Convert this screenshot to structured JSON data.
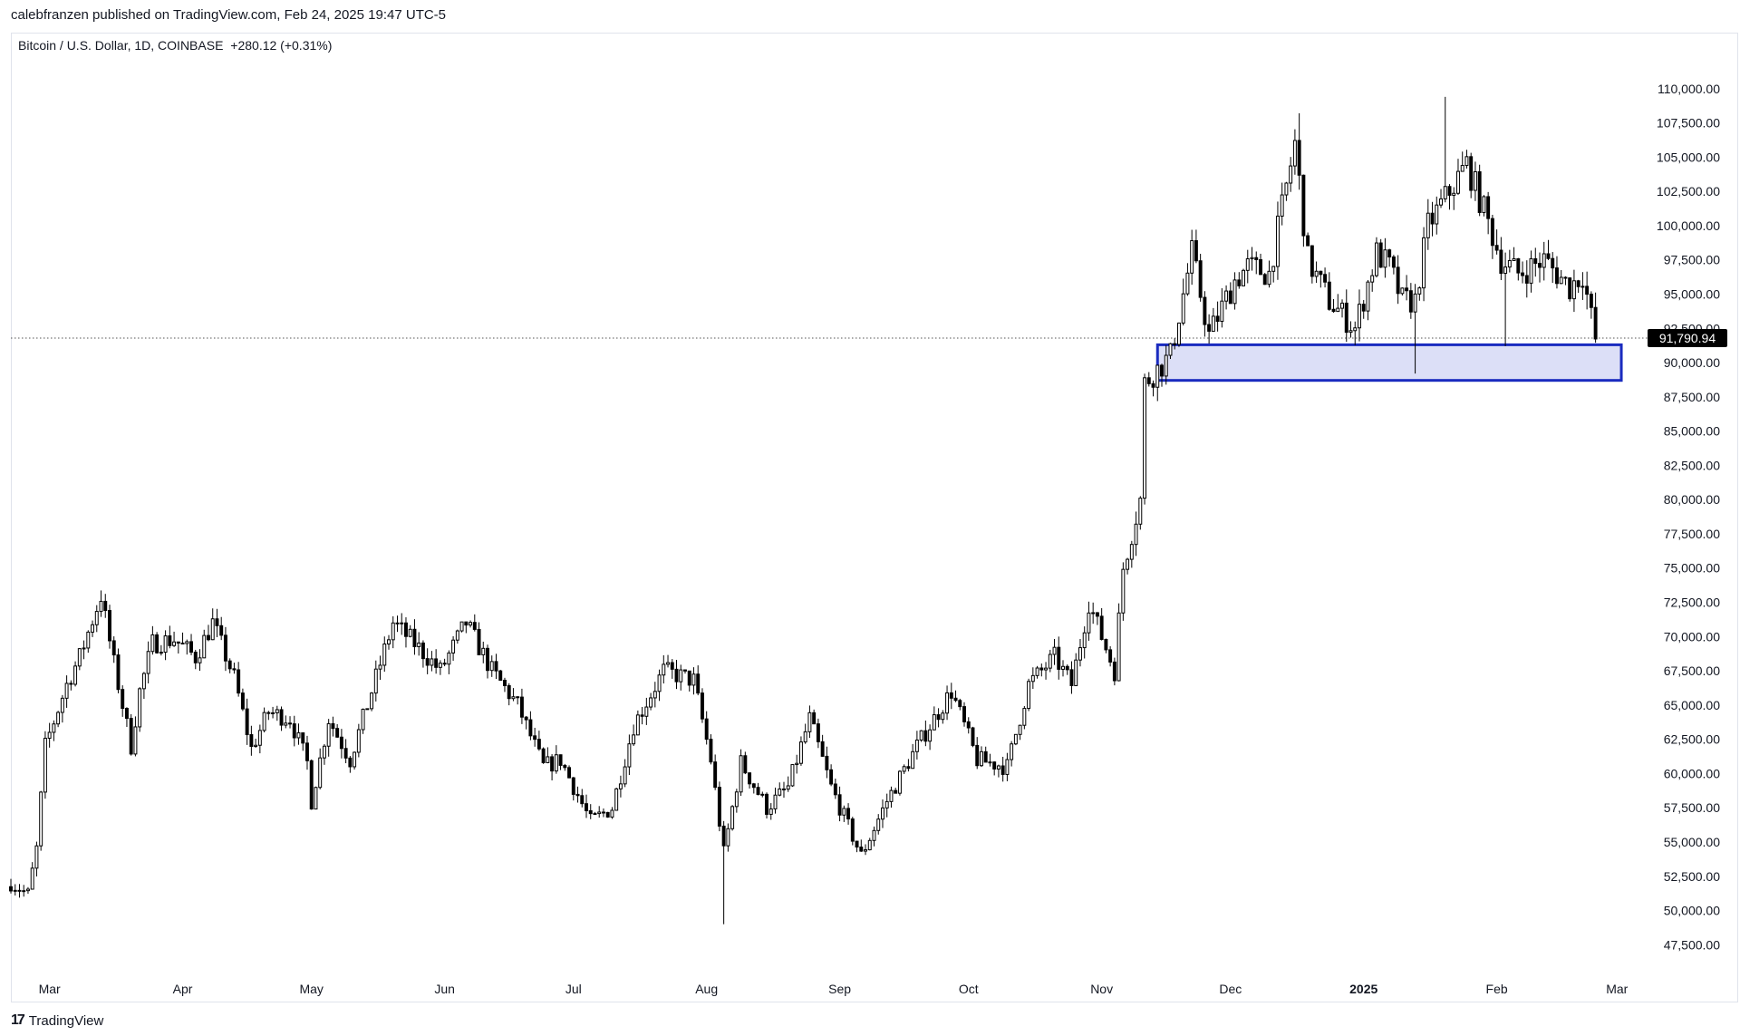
{
  "header": {
    "publish_text": "calebfranzen published on TradingView.com, Feb 24, 2025 19:47 UTC-5"
  },
  "symbol": {
    "name": "Bitcoin / U.S. Dollar, 1D, COINBASE",
    "change": "+280.12 (+0.31%)"
  },
  "footer": {
    "logo_text": "TradingView",
    "logo_icon": "tradingview-logo-icon"
  },
  "colors": {
    "candle": "#000000",
    "zone_fill": "#d6d9f6",
    "zone_stroke": "#1a2bbf",
    "price_line": "#555555",
    "price_label_bg": "#000000",
    "axis_text": "#131722"
  },
  "chart_data": {
    "type": "candlestick",
    "title": "Bitcoin / U.S. Dollar, 1D, COINBASE",
    "y_scale": "linear",
    "ylim": [
      46000,
      112500
    ],
    "y_ticks": [
      "110,000.00",
      "107,500.00",
      "105,000.00",
      "102,500.00",
      "100,000.00",
      "97,500.00",
      "95,000.00",
      "92,500.00",
      "90,000.00",
      "87,500.00",
      "85,000.00",
      "82,500.00",
      "80,000.00",
      "77,500.00",
      "75,000.00",
      "72,500.00",
      "70,000.00",
      "67,500.00",
      "65,000.00",
      "62,500.00",
      "60,000.00",
      "57,500.00",
      "55,000.00",
      "52,500.00",
      "50,000.00",
      "47,500.00"
    ],
    "x_range": [
      "2024-02-21",
      "2025-03-06"
    ],
    "x_ticks": [
      {
        "label": "Mar",
        "date": "2024-03-01",
        "bold": false
      },
      {
        "label": "Apr",
        "date": "2024-04-01",
        "bold": false
      },
      {
        "label": "May",
        "date": "2024-05-01",
        "bold": false
      },
      {
        "label": "Jun",
        "date": "2024-06-01",
        "bold": false
      },
      {
        "label": "Jul",
        "date": "2024-07-01",
        "bold": false
      },
      {
        "label": "Aug",
        "date": "2024-08-01",
        "bold": false
      },
      {
        "label": "Sep",
        "date": "2024-09-01",
        "bold": false
      },
      {
        "label": "Oct",
        "date": "2024-10-01",
        "bold": false
      },
      {
        "label": "Nov",
        "date": "2024-11-01",
        "bold": false
      },
      {
        "label": "Dec",
        "date": "2024-12-01",
        "bold": false
      },
      {
        "label": "2025",
        "date": "2025-01-01",
        "bold": true
      },
      {
        "label": "Feb",
        "date": "2025-02-01",
        "bold": false
      },
      {
        "label": "Mar",
        "date": "2025-03-01",
        "bold": false
      }
    ],
    "current_price": 91790.94,
    "current_price_label": "91,790.94",
    "zone": {
      "x_start": "2024-11-14",
      "x_end": "2025-03-02",
      "y_low": 88700,
      "y_high": 91300
    },
    "close_path": [
      [
        "2024-02-21",
        52000
      ],
      [
        "2024-02-25",
        51200
      ],
      [
        "2024-02-27",
        54500
      ],
      [
        "2024-02-29",
        62000
      ],
      [
        "2024-03-05",
        66500
      ],
      [
        "2024-03-08",
        68500
      ],
      [
        "2024-03-13",
        73000
      ],
      [
        "2024-03-16",
        68000
      ],
      [
        "2024-03-20",
        62000
      ],
      [
        "2024-03-22",
        66000
      ],
      [
        "2024-03-25",
        69500
      ],
      [
        "2024-03-30",
        69800
      ],
      [
        "2024-04-04",
        68500
      ],
      [
        "2024-04-08",
        71000
      ],
      [
        "2024-04-13",
        67000
      ],
      [
        "2024-04-17",
        61800
      ],
      [
        "2024-04-21",
        64500
      ],
      [
        "2024-04-26",
        64000
      ],
      [
        "2024-04-30",
        60800
      ],
      [
        "2024-05-01",
        58000
      ],
      [
        "2024-05-05",
        64000
      ],
      [
        "2024-05-10",
        61000
      ],
      [
        "2024-05-15",
        66000
      ],
      [
        "2024-05-20",
        71000
      ],
      [
        "2024-05-25",
        69500
      ],
      [
        "2024-05-31",
        67500
      ],
      [
        "2024-06-06",
        71000
      ],
      [
        "2024-06-12",
        67500
      ],
      [
        "2024-06-18",
        65000
      ],
      [
        "2024-06-24",
        60500
      ],
      [
        "2024-06-28",
        61000
      ],
      [
        "2024-07-05",
        56500
      ],
      [
        "2024-07-10",
        57500
      ],
      [
        "2024-07-15",
        63500
      ],
      [
        "2024-07-22",
        67500
      ],
      [
        "2024-07-29",
        66800
      ],
      [
        "2024-08-02",
        61000
      ],
      [
        "2024-08-05",
        54200
      ],
      [
        "2024-08-09",
        60800
      ],
      [
        "2024-08-15",
        57500
      ],
      [
        "2024-08-20",
        59000
      ],
      [
        "2024-08-25",
        64000
      ],
      [
        "2024-08-30",
        59000
      ],
      [
        "2024-09-06",
        54000
      ],
      [
        "2024-09-12",
        58000
      ],
      [
        "2024-09-19",
        62000
      ],
      [
        "2024-09-27",
        66000
      ],
      [
        "2024-10-03",
        61000
      ],
      [
        "2024-10-10",
        60500
      ],
      [
        "2024-10-15",
        66500
      ],
      [
        "2024-10-21",
        68500
      ],
      [
        "2024-10-25",
        66500
      ],
      [
        "2024-10-29",
        72500
      ],
      [
        "2024-11-04",
        67500
      ],
      [
        "2024-11-06",
        75000
      ],
      [
        "2024-11-10",
        80000
      ],
      [
        "2024-11-11",
        88500
      ],
      [
        "2024-11-17",
        90500
      ],
      [
        "2024-11-22",
        98000
      ],
      [
        "2024-11-26",
        92000
      ],
      [
        "2024-12-02",
        96000
      ],
      [
        "2024-12-05",
        97000
      ],
      [
        "2024-12-10",
        96500
      ],
      [
        "2024-12-16",
        106000
      ],
      [
        "2024-12-19",
        97500
      ],
      [
        "2024-12-24",
        94500
      ],
      [
        "2024-12-30",
        92500
      ],
      [
        "2025-01-04",
        98000
      ],
      [
        "2025-01-07",
        97000
      ],
      [
        "2025-01-10",
        94500
      ],
      [
        "2025-01-13",
        94500
      ],
      [
        "2025-01-16",
        100000
      ],
      [
        "2025-01-20",
        102000
      ],
      [
        "2025-01-25",
        104500
      ],
      [
        "2025-01-28",
        102000
      ],
      [
        "2025-02-02",
        97500
      ],
      [
        "2025-02-06",
        96500
      ],
      [
        "2025-02-12",
        97500
      ],
      [
        "2025-02-18",
        95500
      ],
      [
        "2025-02-21",
        96500
      ],
      [
        "2025-02-24",
        91700
      ]
    ],
    "wick_spikes": [
      {
        "date": "2024-08-05",
        "low": 49000
      },
      {
        "date": "2024-12-17",
        "high": 108200
      },
      {
        "date": "2025-01-13",
        "low": 89200
      },
      {
        "date": "2025-01-20",
        "high": 109400
      },
      {
        "date": "2025-02-03",
        "low": 91200
      }
    ]
  }
}
